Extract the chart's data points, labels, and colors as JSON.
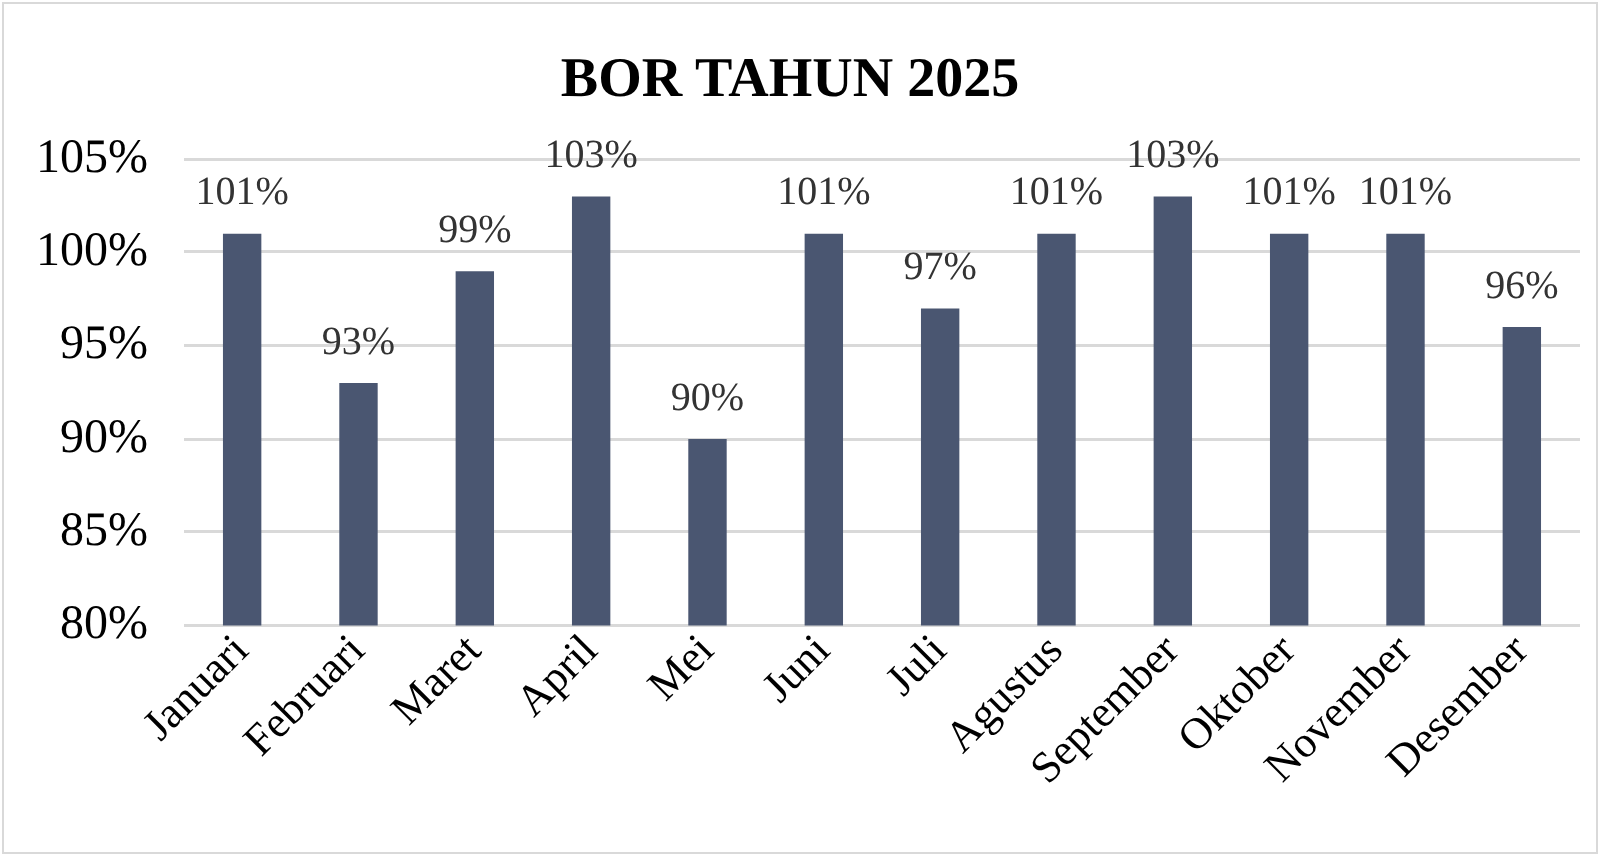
{
  "chart_data": {
    "type": "bar",
    "title": "BOR TAHUN 2025",
    "categories": [
      "Januari",
      "Februari",
      "Maret",
      "April",
      "Mei",
      "Juni",
      "Juli",
      "Agustus",
      "September",
      "Oktober",
      "November",
      "Desember"
    ],
    "values": [
      101,
      93,
      99,
      103,
      90,
      101,
      97,
      101,
      103,
      101,
      101,
      96
    ],
    "value_labels": [
      "101%",
      "93%",
      "99%",
      "103%",
      "90%",
      "101%",
      "97%",
      "101%",
      "103%",
      "101%",
      "101%",
      "96%"
    ],
    "color": "#4a5671",
    "ylim": [
      80,
      105
    ],
    "yticks": [
      {
        "value": 80,
        "label": "80%"
      },
      {
        "value": 85,
        "label": "85%"
      },
      {
        "value": 90,
        "label": "90%"
      },
      {
        "value": 95,
        "label": "95%"
      },
      {
        "value": 100,
        "label": "100%"
      },
      {
        "value": 105,
        "label": "105%"
      }
    ],
    "grid": "y"
  }
}
